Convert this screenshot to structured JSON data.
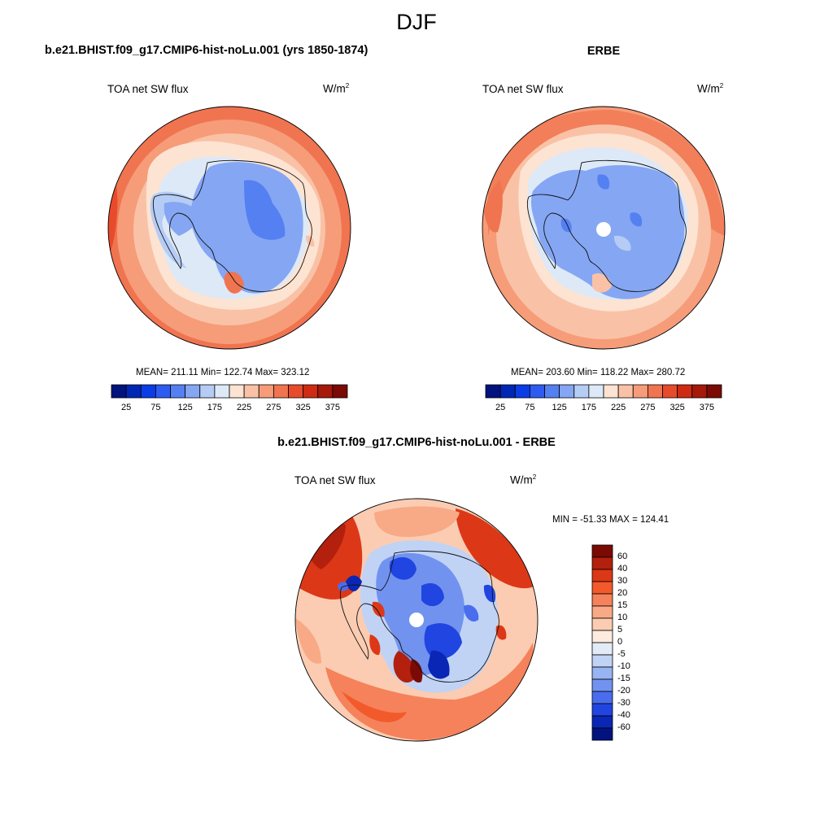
{
  "title": "DJF",
  "panels": [
    {
      "id": "model",
      "case_title": "b.e21.BHIST.f09_g17.CMIP6-hist-noLu.001 (yrs 1850-1874)",
      "variable": "TOA net SW flux",
      "units_base": "W/m",
      "units_exp": "2",
      "stats": "MEAN= 211.11  Min= 122.74  Max= 323.12",
      "colorbar": {
        "orientation": "horizontal",
        "tick_labels": [
          "25",
          "75",
          "125",
          "175",
          "225",
          "275",
          "325",
          "375"
        ]
      }
    },
    {
      "id": "obs",
      "case_title": "ERBE",
      "variable": "TOA net SW flux",
      "units_base": "W/m",
      "units_exp": "2",
      "stats": "MEAN= 203.60  Min= 118.22  Max= 280.72",
      "colorbar": {
        "orientation": "horizontal",
        "tick_labels": [
          "25",
          "75",
          "125",
          "175",
          "225",
          "275",
          "325",
          "375"
        ]
      }
    },
    {
      "id": "diff",
      "case_title": "b.e21.BHIST.f09_g17.CMIP6-hist-noLu.001 - ERBE",
      "variable": "TOA net SW flux",
      "units_base": "W/m",
      "units_exp": "2",
      "stats": "MIN = -51.33 MAX = 124.41",
      "colorbar": {
        "orientation": "vertical",
        "tick_labels": [
          "60",
          "40",
          "30",
          "20",
          "15",
          "10",
          "5",
          "0",
          "-5",
          "-10",
          "-15",
          "-20",
          "-30",
          "-40",
          "-60"
        ]
      }
    }
  ],
  "colors": {
    "abs_scale": [
      "#00137e",
      "#0027b4",
      "#0b3de6",
      "#2e5cf0",
      "#5580f2",
      "#85a6f3",
      "#b5ccf4",
      "#dde9f7",
      "#fde3d2",
      "#f9c2a6",
      "#f69c78",
      "#f07450",
      "#e84b2b",
      "#cf2a12",
      "#a5180a",
      "#7b0a05"
    ],
    "diff_scale": [
      "#7b0a05",
      "#b3200d",
      "#dc3817",
      "#f25a2c",
      "#f5825a",
      "#f8a985",
      "#fbccb2",
      "#fdebdf",
      "#e2ecf8",
      "#c0d3f5",
      "#98b4f2",
      "#7193ef",
      "#4a6ded",
      "#2145e0",
      "#0a26b4",
      "#00137e"
    ]
  }
}
